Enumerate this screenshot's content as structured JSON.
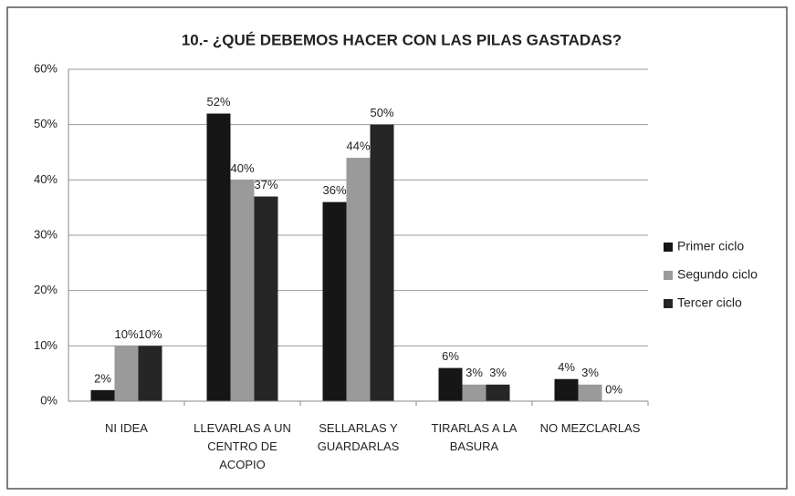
{
  "chart_data": {
    "type": "bar",
    "title": "10.- ¿QUÉ DEBEMOS HACER CON LAS PILAS GASTADAS?",
    "categories": [
      "NI IDEA",
      "LLEVARLAS A UN CENTRO DE ACOPIO",
      "SELLARLAS Y GUARDARLAS",
      "TIRARLAS A LA BASURA",
      "NO MEZCLARLAS"
    ],
    "series": [
      {
        "name": "Primer  ciclo",
        "color": "#161616",
        "values": [
          2,
          52,
          36,
          6,
          4
        ],
        "value_labels": [
          "2%",
          "52%",
          "36%",
          "6%",
          "4%"
        ]
      },
      {
        "name": "Segundo ciclo",
        "color": "#9a9a9a",
        "values": [
          10,
          40,
          44,
          3,
          3
        ],
        "value_labels": [
          "10%",
          "40%",
          "44%",
          "3%",
          "3%"
        ]
      },
      {
        "name": "Tercer ciclo",
        "color": "#262626",
        "values": [
          10,
          37,
          50,
          3,
          0
        ],
        "value_labels": [
          "10%",
          "37%",
          "50%",
          "3%",
          "0%"
        ]
      }
    ],
    "ylim": [
      0,
      60
    ],
    "yticks": [
      {
        "value": 0,
        "label": "0%"
      },
      {
        "value": 10,
        "label": "10%"
      },
      {
        "value": 20,
        "label": "20%"
      },
      {
        "value": 30,
        "label": "30%"
      },
      {
        "value": 40,
        "label": "40%"
      },
      {
        "value": 50,
        "label": "50%"
      },
      {
        "value": 60,
        "label": "60%"
      }
    ],
    "grid": true,
    "legend": "right"
  }
}
